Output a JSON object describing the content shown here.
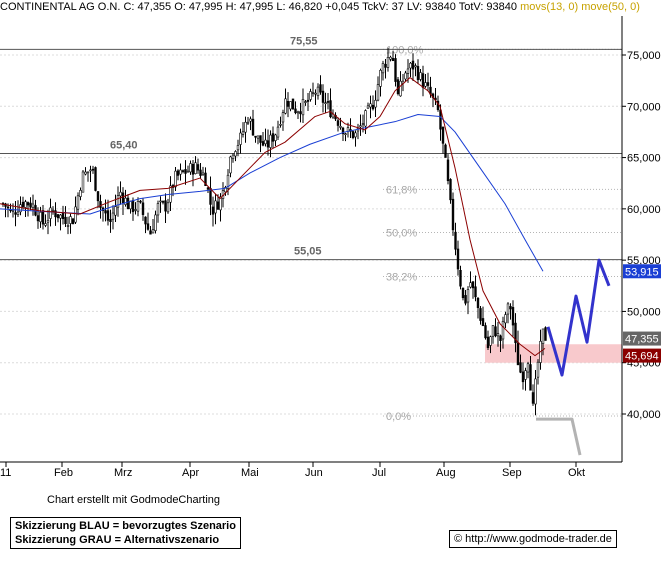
{
  "header": {
    "name": "CONTINENTAL AG O.N.",
    "quote": "C: 47,355 O: 47,995 H: 47,995 L: 46,820 +0,045 TckV: 37 LV: 93840 TotV: 93840",
    "ma_label": "movs(13, 0) move(50, 0)"
  },
  "chart_data": {
    "type": "candlestick",
    "y_axis_ticks": [
      "75,000",
      "70,000",
      "65,000",
      "60,000",
      "55,000",
      "50,000",
      "45,000",
      "40,000"
    ],
    "x_axis_ticks": [
      "11",
      "Feb",
      "Mrz",
      "Apr",
      "Mai",
      "Jun",
      "Jul",
      "Aug",
      "Sep",
      "Okt"
    ],
    "horizontal_levels": [
      {
        "label": "75,55",
        "value": 75.55
      },
      {
        "label": "65,40",
        "value": 65.4
      },
      {
        "label": "55,05",
        "value": 55.05
      }
    ],
    "fibonacci_levels": [
      {
        "label": "100,0%",
        "value": 75.55
      },
      {
        "label": "61,8%",
        "value": 61.9
      },
      {
        "label": "50,0%",
        "value": 57.7
      },
      {
        "label": "38,2%",
        "value": 53.4
      },
      {
        "label": "0,0%",
        "value": 39.8
      }
    ],
    "price_tags": [
      {
        "label": "53,915",
        "value": 53.915,
        "color": "#1a3fd4"
      },
      {
        "label": "47,355",
        "value": 47.355,
        "color": "#666666"
      },
      {
        "label": "45,694",
        "value": 45.694,
        "color": "#8b0000"
      }
    ],
    "support_zone": [
      45.0,
      46.8
    ],
    "ma_slow_keypoints": [
      [
        0,
        60.0
      ],
      [
        50,
        59.7
      ],
      [
        90,
        59.5
      ],
      [
        115,
        60.3
      ],
      [
        140,
        61.0
      ],
      [
        168,
        61.4
      ],
      [
        200,
        61.7
      ],
      [
        225,
        62.0
      ],
      [
        250,
        63.5
      ],
      [
        280,
        65.0
      ],
      [
        310,
        66.3
      ],
      [
        345,
        67.5
      ],
      [
        370,
        68.0
      ],
      [
        395,
        68.5
      ],
      [
        418,
        69.2
      ],
      [
        440,
        69.0
      ],
      [
        455,
        67.5
      ],
      [
        480,
        64.0
      ],
      [
        505,
        60.5
      ],
      [
        525,
        57.0
      ],
      [
        543,
        53.915
      ]
    ],
    "ma_fast_keypoints": [
      [
        0,
        60.5
      ],
      [
        40,
        59.8
      ],
      [
        80,
        59.5
      ],
      [
        110,
        60.7
      ],
      [
        140,
        61.8
      ],
      [
        168,
        62.0
      ],
      [
        200,
        63.0
      ],
      [
        220,
        61.0
      ],
      [
        240,
        63.0
      ],
      [
        265,
        65.5
      ],
      [
        285,
        66.5
      ],
      [
        315,
        69.0
      ],
      [
        330,
        69.5
      ],
      [
        345,
        68.3
      ],
      [
        365,
        67.7
      ],
      [
        380,
        69.0
      ],
      [
        395,
        71.5
      ],
      [
        410,
        72.8
      ],
      [
        428,
        71.5
      ],
      [
        440,
        70.0
      ],
      [
        455,
        64.0
      ],
      [
        470,
        57.0
      ],
      [
        483,
        52.0
      ],
      [
        500,
        48.8
      ],
      [
        520,
        46.8
      ],
      [
        535,
        45.694
      ],
      [
        545,
        46.4
      ]
    ],
    "close_keypoints": [
      [
        4,
        60.5
      ],
      [
        12,
        59.5
      ],
      [
        22,
        60.7
      ],
      [
        32,
        60.5
      ],
      [
        43,
        58.6
      ],
      [
        53,
        59.8
      ],
      [
        63,
        59.1
      ],
      [
        73,
        59.0
      ],
      [
        82,
        63.1
      ],
      [
        92,
        64.0
      ],
      [
        100,
        60.3
      ],
      [
        110,
        58.6
      ],
      [
        120,
        61.7
      ],
      [
        130,
        60.1
      ],
      [
        140,
        60.3
      ],
      [
        150,
        57.5
      ],
      [
        158,
        60.2
      ],
      [
        166,
        60.3
      ],
      [
        175,
        63.0
      ],
      [
        185,
        63.6
      ],
      [
        195,
        64.1
      ],
      [
        205,
        63.2
      ],
      [
        212,
        59.8
      ],
      [
        222,
        61.2
      ],
      [
        232,
        65.7
      ],
      [
        240,
        66.7
      ],
      [
        248,
        69.0
      ],
      [
        256,
        67.0
      ],
      [
        266,
        66.0
      ],
      [
        276,
        67.5
      ],
      [
        286,
        70.7
      ],
      [
        296,
        69.7
      ],
      [
        306,
        70.2
      ],
      [
        316,
        71.5
      ],
      [
        326,
        70.2
      ],
      [
        336,
        68.9
      ],
      [
        346,
        67.5
      ],
      [
        356,
        67.2
      ],
      [
        366,
        69.0
      ],
      [
        374,
        70.5
      ],
      [
        382,
        73.8
      ],
      [
        392,
        75.3
      ],
      [
        398,
        71.0
      ],
      [
        406,
        73.5
      ],
      [
        414,
        74.0
      ],
      [
        422,
        72.5
      ],
      [
        430,
        71.2
      ],
      [
        438,
        69.5
      ],
      [
        446,
        64.0
      ],
      [
        452,
        59.0
      ],
      [
        458,
        54.5
      ],
      [
        464,
        50.5
      ],
      [
        470,
        53.0
      ],
      [
        476,
        51.0
      ],
      [
        482,
        49.0
      ],
      [
        488,
        46.5
      ],
      [
        494,
        48.5
      ],
      [
        500,
        47.0
      ],
      [
        506,
        50.0
      ],
      [
        511,
        50.5
      ],
      [
        516,
        46.0
      ],
      [
        522,
        43.5
      ],
      [
        528,
        45.5
      ],
      [
        533,
        40.5
      ],
      [
        538,
        45.0
      ],
      [
        543,
        47.8
      ],
      [
        547,
        47.355
      ]
    ],
    "scenario_blue": [
      [
        548,
        48.5
      ],
      [
        562,
        43.8
      ],
      [
        576,
        51.5
      ],
      [
        587,
        47.0
      ],
      [
        599,
        55.0
      ],
      [
        609,
        52.5
      ]
    ],
    "scenario_gray": [
      [
        536,
        39.5
      ],
      [
        572,
        39.5
      ],
      [
        580,
        36.0
      ]
    ]
  },
  "footer": {
    "credit": "Chart erstellt mit GodmodeCharting",
    "legend_blue": "Skizzierung BLAU = bevorzugtes Szenario",
    "legend_gray": "Skizzierung GRAU = Alternativszenario",
    "url": "© http://www.godmode-trader.de"
  }
}
